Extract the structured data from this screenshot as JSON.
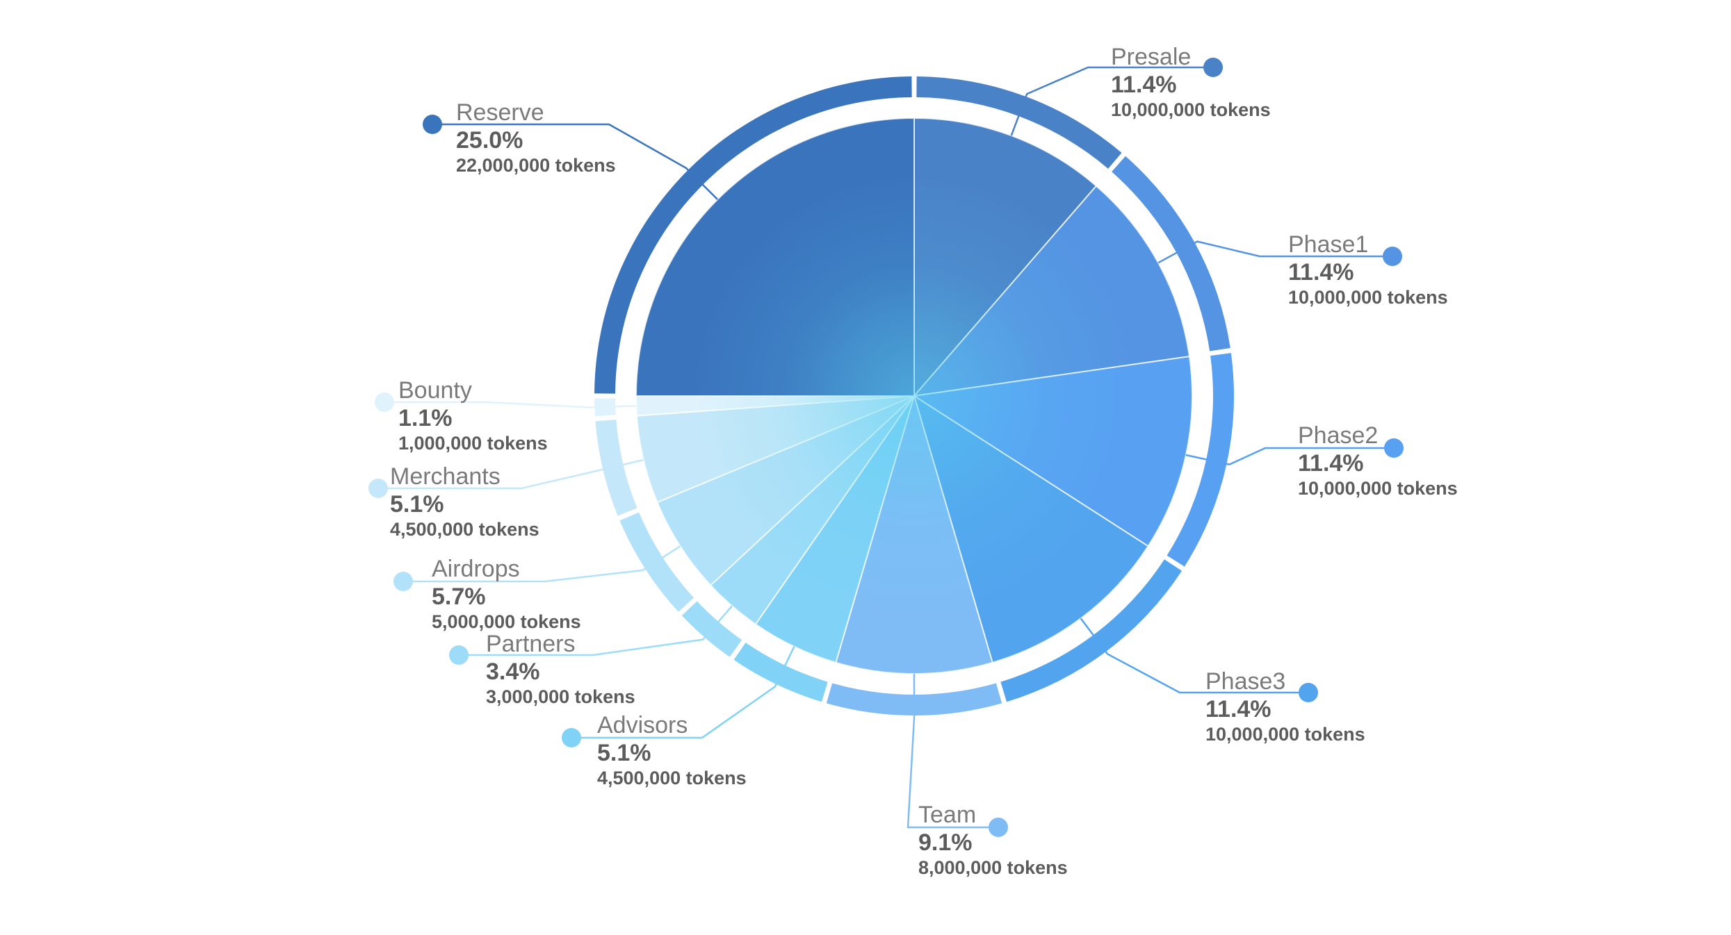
{
  "chart_data": {
    "type": "pie",
    "title": "",
    "start_angle_deg": 0,
    "direction": "clockwise",
    "slices": [
      {
        "label": "Presale",
        "percent_text": "11.4%",
        "tokens_text": "10,000,000 tokens",
        "value": 10000000,
        "color": "#4a82c8"
      },
      {
        "label": "Phase1",
        "percent_text": "11.4%",
        "tokens_text": "10,000,000 tokens",
        "value": 10000000,
        "color": "#5594e2"
      },
      {
        "label": "Phase2",
        "percent_text": "11.4%",
        "tokens_text": "10,000,000 tokens",
        "value": 10000000,
        "color": "#58a0f2"
      },
      {
        "label": "Phase3",
        "percent_text": "11.4%",
        "tokens_text": "10,000,000 tokens",
        "value": 10000000,
        "color": "#52a4ee"
      },
      {
        "label": "Team",
        "percent_text": "9.1%",
        "tokens_text": "8,000,000 tokens",
        "value": 8000000,
        "color": "#7fbcf6"
      },
      {
        "label": "Advisors",
        "percent_text": "5.1%",
        "tokens_text": "4,500,000 tokens",
        "value": 4500000,
        "color": "#80d2f7"
      },
      {
        "label": "Partners",
        "percent_text": "3.4%",
        "tokens_text": "3,000,000 tokens",
        "value": 3000000,
        "color": "#9cdcf8"
      },
      {
        "label": "Airdrops",
        "percent_text": "5.7%",
        "tokens_text": "5,000,000 tokens",
        "value": 5000000,
        "color": "#b2e2f9"
      },
      {
        "label": "Merchants",
        "percent_text": "5.1%",
        "tokens_text": "4,500,000 tokens",
        "value": 4500000,
        "color": "#c4e8f9"
      },
      {
        "label": "Bounty",
        "percent_text": "1.1%",
        "tokens_text": "1,000,000 tokens",
        "value": 1000000,
        "color": "#e0f3fc"
      },
      {
        "label": "Reserve",
        "percent_text": "25.0%",
        "tokens_text": "22,000,000 tokens",
        "value": 22000000,
        "color": "#3a74bd"
      }
    ],
    "legend": "callouts-around-pie"
  }
}
